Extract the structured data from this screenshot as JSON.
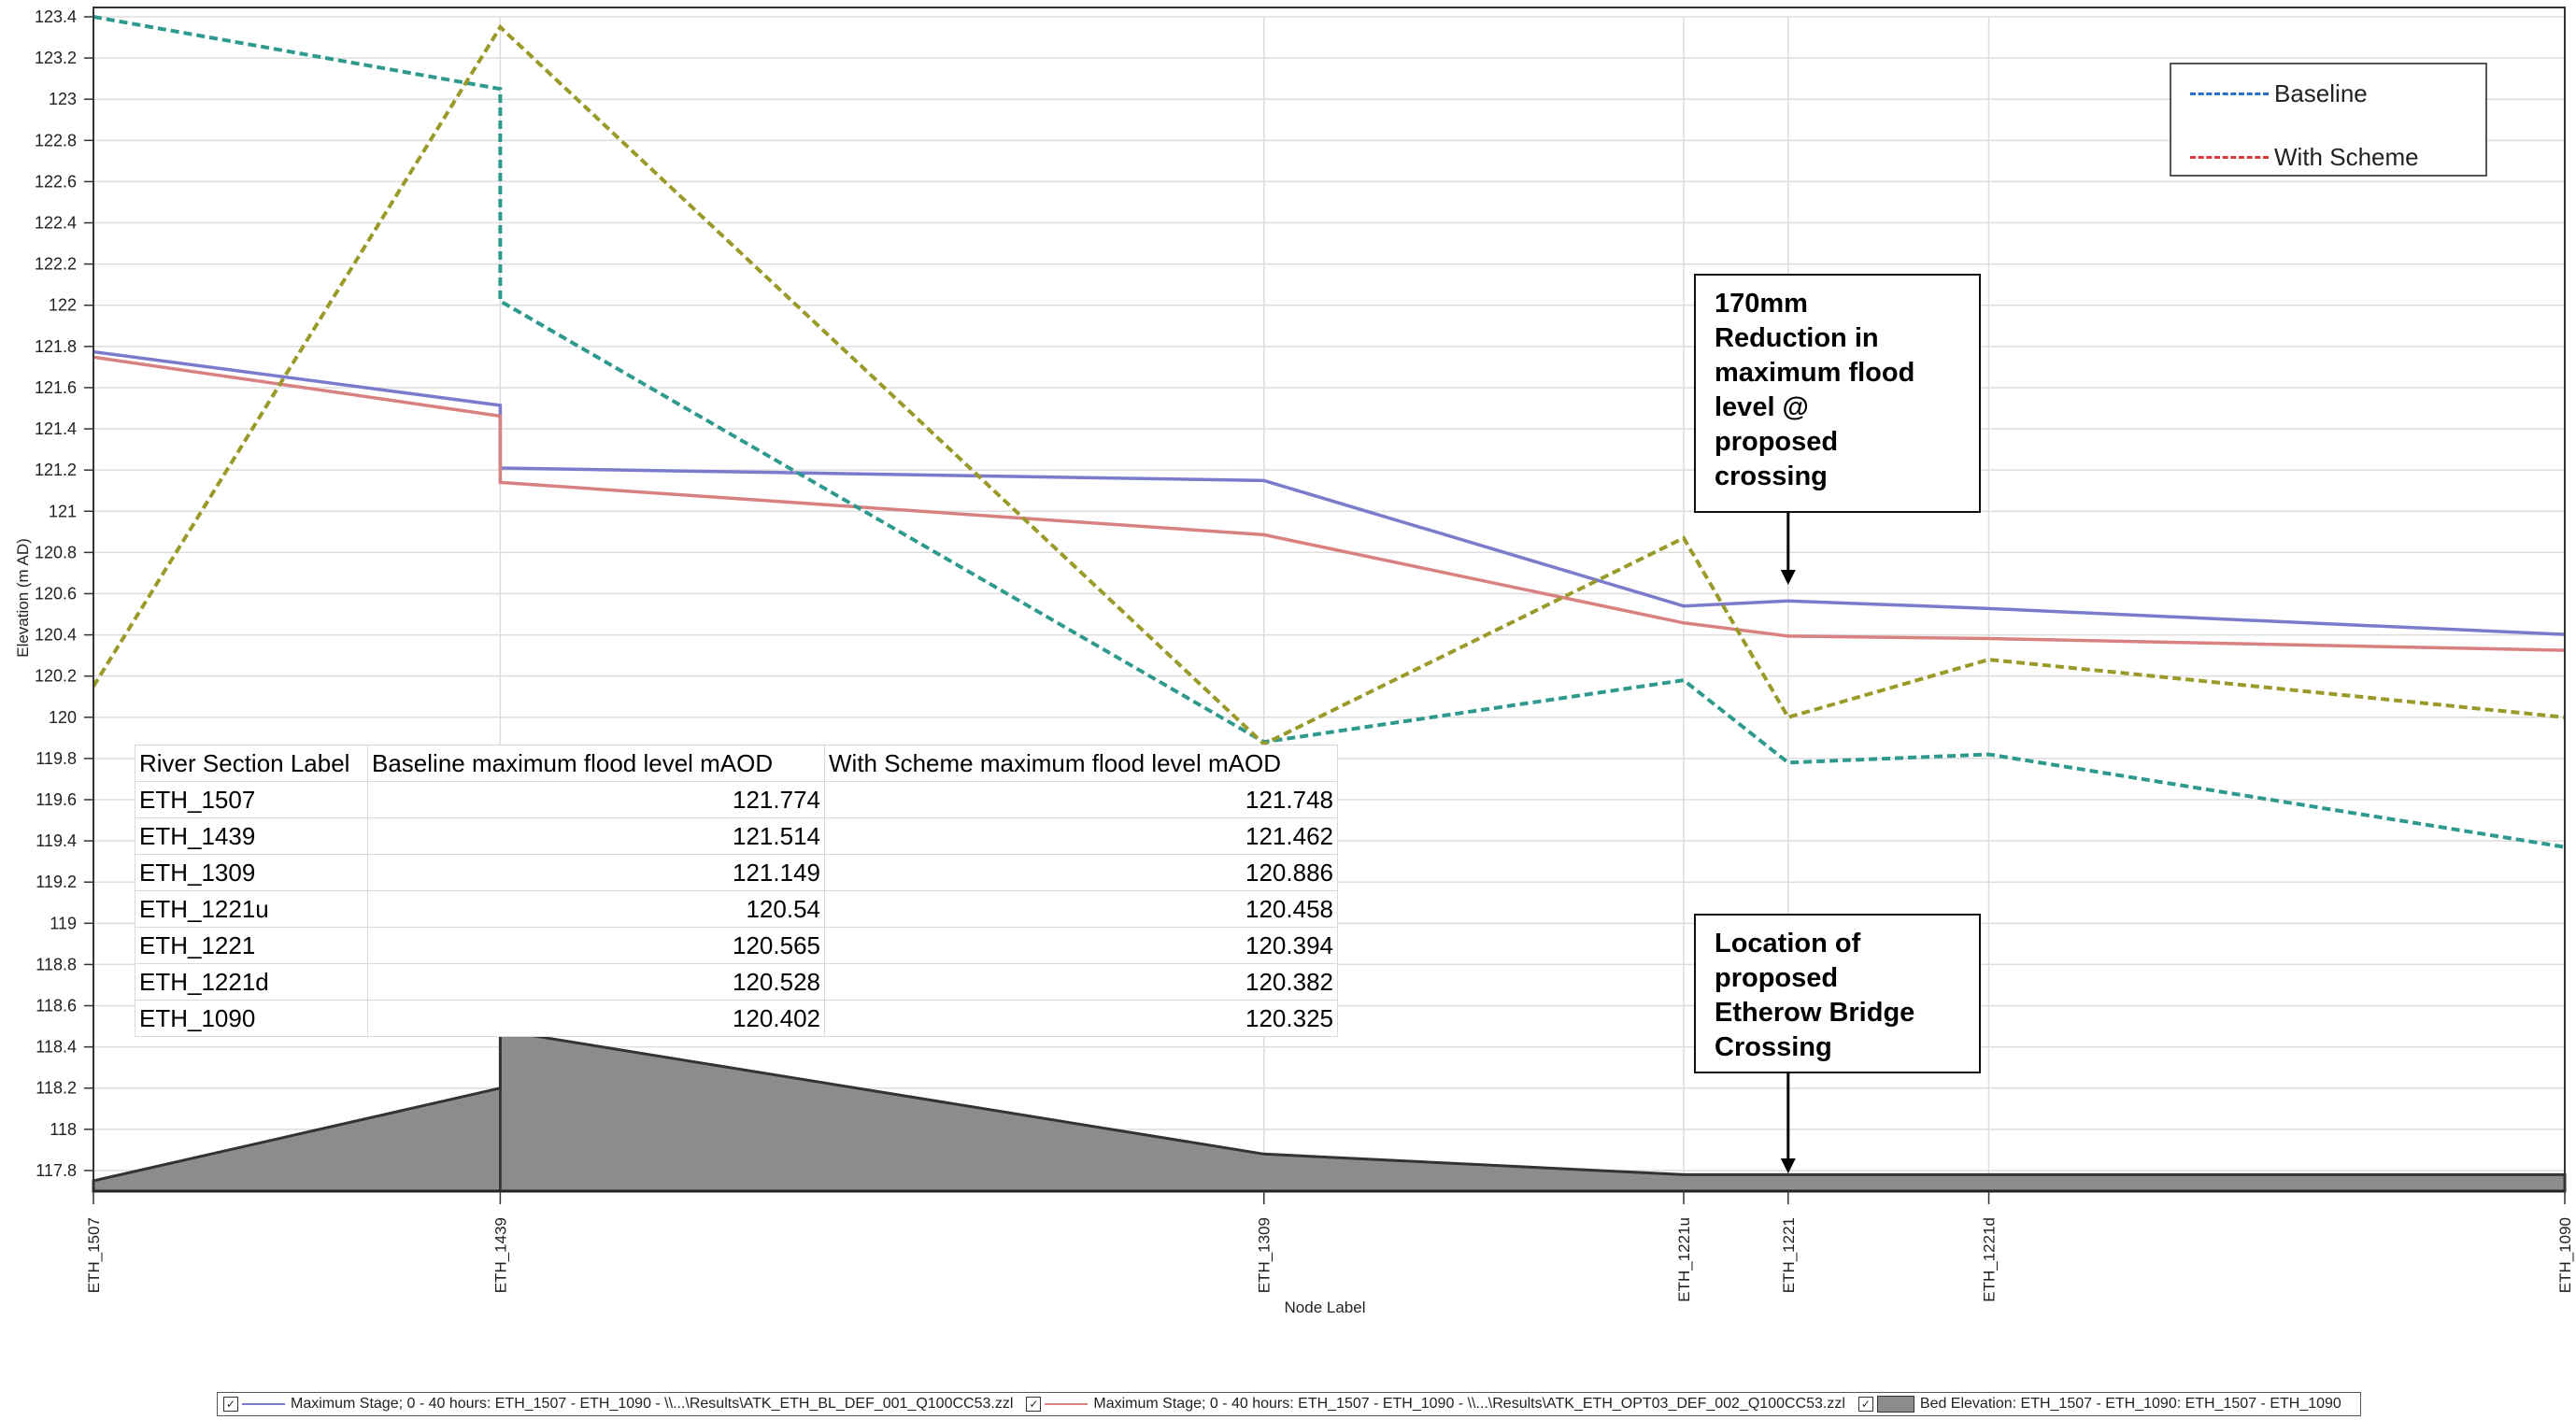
{
  "chart_data": {
    "type": "line",
    "title": "",
    "xlabel": "Node Label",
    "ylabel": "Elevation (m AD)",
    "ylim": [
      117.7,
      123.4
    ],
    "yticks": [
      "117.8",
      "118",
      "118.2",
      "118.4",
      "118.6",
      "118.8",
      "119",
      "119.2",
      "119.4",
      "119.6",
      "119.8",
      "120",
      "120.2",
      "120.4",
      "120.6",
      "120.8",
      "121",
      "121.2",
      "121.4",
      "121.6",
      "121.8",
      "122",
      "122.2",
      "122.4",
      "122.6",
      "122.8",
      "123",
      "123.2",
      "123.4"
    ],
    "categories": [
      "ETH_1507",
      "ETH_1439",
      "ETH_1309",
      "ETH_1221u",
      "ETH_1221",
      "ETH_1221d",
      "ETH_1090"
    ],
    "x_chainage": [
      0,
      440,
      1266,
      1720,
      1833,
      2050,
      2673
    ],
    "grid": true,
    "legend_position": "top-right",
    "series": [
      {
        "name": "Maximum Stage; 0 - 40 hours: ETH_1507 - ETH_1090 - \\\\...\\Results\\ATK_ETH_BL_DEF_001_Q100CC53.zzl",
        "color": "#7b7bcc",
        "style": "solid",
        "points": [
          [
            0,
            121.774
          ],
          [
            440,
            121.514
          ],
          [
            440,
            121.21
          ],
          [
            1266,
            121.149
          ],
          [
            1720,
            120.54
          ],
          [
            1833,
            120.565
          ],
          [
            2050,
            120.528
          ],
          [
            2673,
            120.402
          ]
        ]
      },
      {
        "name": "Maximum Stage; 0 - 40 hours: ETH_1507 - ETH_1090 - \\\\...\\Results\\ATK_ETH_OPT03_DEF_002_Q100CC53.zzl",
        "color": "#d98080",
        "style": "solid",
        "points": [
          [
            0,
            121.748
          ],
          [
            440,
            121.462
          ],
          [
            440,
            121.14
          ],
          [
            1266,
            120.886
          ],
          [
            1720,
            120.458
          ],
          [
            1833,
            120.394
          ],
          [
            2050,
            120.382
          ],
          [
            2673,
            120.325
          ]
        ]
      },
      {
        "name": "Baseline",
        "color": "#2e9a8e",
        "style": "dashed",
        "points": [
          [
            0,
            123.4
          ],
          [
            440,
            123.05
          ],
          [
            440,
            122.02
          ],
          [
            1266,
            119.88
          ],
          [
            1720,
            120.18
          ],
          [
            1833,
            119.78
          ],
          [
            2050,
            119.82
          ],
          [
            2673,
            119.37
          ]
        ]
      },
      {
        "name": "With Scheme",
        "color": "#9a9a28",
        "style": "dashed",
        "points": [
          [
            0,
            120.15
          ],
          [
            440,
            123.35
          ],
          [
            1266,
            119.87
          ],
          [
            1720,
            120.87
          ],
          [
            1833,
            120.0
          ],
          [
            2050,
            120.28
          ],
          [
            2673,
            120.0
          ]
        ]
      },
      {
        "name": "Bed Elevation: ETH_1507 - ETH_1090: ETH_1507 - ETH_1090",
        "color": "#8c8c8c",
        "style": "area",
        "points": [
          [
            0,
            117.75
          ],
          [
            440,
            118.2
          ],
          [
            440,
            118.48
          ],
          [
            1266,
            117.88
          ],
          [
            1720,
            117.78
          ],
          [
            1833,
            117.78
          ],
          [
            2050,
            117.78
          ],
          [
            2673,
            117.78
          ]
        ]
      }
    ],
    "legend": [
      {
        "label": "Baseline",
        "color": "#2a6fc9"
      },
      {
        "label": "With Scheme",
        "color": "#d83a3a"
      }
    ],
    "annotations": [
      {
        "text": "170mm\nReduction in\nmaximum flood\nlevel @\nproposed\ncrossing",
        "points_to": "ETH_1221"
      },
      {
        "text": "Location of\nproposed\nEtherow Bridge\nCrossing",
        "points_to": "ETH_1221"
      }
    ],
    "table": {
      "headers": [
        "River Section Label",
        "Baseline maximum flood level mAOD",
        "With Scheme maximum flood level mAOD"
      ],
      "rows": [
        [
          "ETH_1507",
          "121.774",
          "121.748"
        ],
        [
          "ETH_1439",
          "121.514",
          "121.462"
        ],
        [
          "ETH_1309",
          "121.149",
          "120.886"
        ],
        [
          "ETH_1221u",
          "120.54",
          "120.458"
        ],
        [
          "ETH_1221",
          "120.565",
          "120.394"
        ],
        [
          "ETH_1221d",
          "120.528",
          "120.382"
        ],
        [
          "ETH_1090",
          "120.402",
          "120.325"
        ]
      ]
    },
    "footer_legend": [
      {
        "label": "Maximum Stage; 0 - 40 hours: ETH_1507 - ETH_1090 - \\\\...\\Results\\ATK_ETH_BL_DEF_001_Q100CC53.zzl",
        "color": "#7b7bcc",
        "kind": "line"
      },
      {
        "label": "Maximum Stage; 0 - 40 hours: ETH_1507 - ETH_1090 - \\\\...\\Results\\ATK_ETH_OPT03_DEF_002_Q100CC53.zzl",
        "color": "#d98080",
        "kind": "line"
      },
      {
        "label": "Bed Elevation: ETH_1507 - ETH_1090: ETH_1507 - ETH_1090",
        "color": "#8c8c8c",
        "kind": "fill"
      }
    ]
  }
}
